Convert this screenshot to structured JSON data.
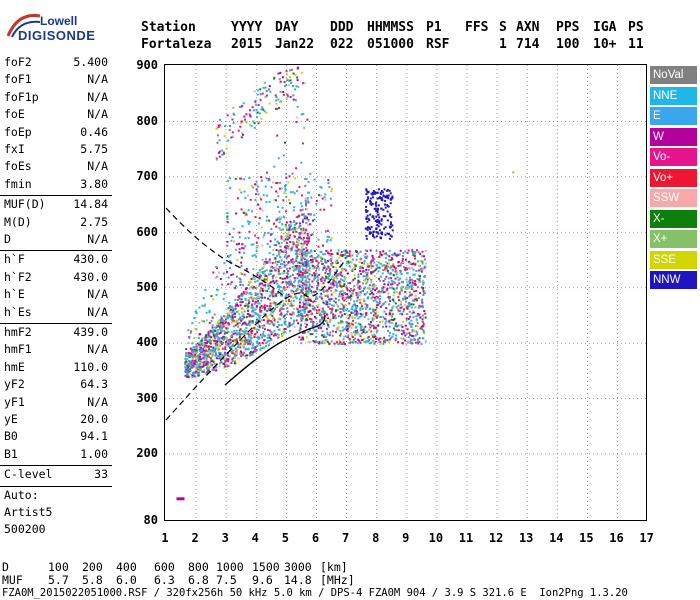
{
  "logo": {
    "line1": "Lowell",
    "line2": "DIGISONDE"
  },
  "header": {
    "row1": [
      "Station",
      "YYYY",
      "DAY",
      "DDD",
      "HHMMSS",
      "P1",
      "FFS",
      "S",
      "AXN",
      "PPS",
      "IGA",
      "PS"
    ],
    "row2": [
      "Fortaleza",
      "2015",
      "Jan22",
      "022",
      "051000",
      "RSF",
      "",
      "1",
      "714",
      "100",
      "10+",
      "11"
    ]
  },
  "params": [
    {
      "k": "foF2",
      "v": "5.400"
    },
    {
      "k": "foF1",
      "v": "N/A"
    },
    {
      "k": "foF1p",
      "v": "N/A"
    },
    {
      "k": "foE",
      "v": "N/A"
    },
    {
      "k": "foEp",
      "v": "0.46"
    },
    {
      "k": "fxI",
      "v": "5.75"
    },
    {
      "k": "foEs",
      "v": "N/A"
    },
    {
      "k": "fmin",
      "v": "3.80"
    },
    {
      "k": "MUF(D)",
      "v": "14.84",
      "sep": true
    },
    {
      "k": "M(D)",
      "v": "2.75"
    },
    {
      "k": "D",
      "v": "N/A"
    },
    {
      "k": "h`F",
      "v": "430.0",
      "sep": true
    },
    {
      "k": "h`F2",
      "v": "430.0"
    },
    {
      "k": "h`E",
      "v": "N/A"
    },
    {
      "k": "h`Es",
      "v": "N/A"
    },
    {
      "k": "hmF2",
      "v": "439.0",
      "sep": true
    },
    {
      "k": "hmF1",
      "v": "N/A"
    },
    {
      "k": "hmE",
      "v": "110.0"
    },
    {
      "k": "yF2",
      "v": "64.3"
    },
    {
      "k": "yF1",
      "v": "N/A"
    },
    {
      "k": "yE",
      "v": "20.0"
    },
    {
      "k": "B0",
      "v": "94.1"
    },
    {
      "k": "B1",
      "v": "1.00"
    },
    {
      "k": "C-level",
      "v": "33",
      "sep": true
    },
    {
      "k": "Auto:",
      "v": "",
      "sep": true
    },
    {
      "k": "Artist5",
      "v": ""
    },
    {
      "k": "500200",
      "v": ""
    }
  ],
  "plot": {
    "y_ticks": [
      "900",
      "800",
      "700",
      "600",
      "500",
      "400",
      "300",
      "200",
      "80"
    ],
    "x_ticks": [
      "1",
      "2",
      "3",
      "4",
      "5",
      "6",
      "7",
      "8",
      "9",
      "10",
      "11",
      "12",
      "13",
      "14",
      "15",
      "16",
      "17"
    ]
  },
  "legend": [
    {
      "label": "NoVal",
      "color": "#808080"
    },
    {
      "label": "NNE",
      "color": "#1fb8e6"
    },
    {
      "label": "E",
      "color": "#3aa6ee"
    },
    {
      "label": "W",
      "color": "#b4009c"
    },
    {
      "label": "Vo-",
      "color": "#e6158c"
    },
    {
      "label": "Vo+",
      "color": "#ee1633"
    },
    {
      "label": "SSW",
      "color": "#f7a9a9"
    },
    {
      "label": "X-",
      "color": "#0d7f0d"
    },
    {
      "label": "X+",
      "color": "#86c067"
    },
    {
      "label": "SSE",
      "color": "#cfd600"
    },
    {
      "label": "NNW",
      "color": "#1f14c2"
    }
  ],
  "bottom": {
    "row1_head": "D",
    "row1": [
      "100",
      "200",
      "400",
      "600",
      "800",
      "1000",
      "1500",
      "3000",
      "[km]"
    ],
    "row2_head": "MUF",
    "row2": [
      "5.7",
      "5.8",
      "6.0",
      "6.3",
      "6.8",
      "7.5",
      "9.6",
      "14.8",
      "[MHz]"
    ],
    "footer": "FZA0M_2015022051000.RSF / 320fx256h 50 kHz 5.0 km / DPS-4 FZA0M 904 / 3.9 S 321.6 E  Ion2Png 1.3.20"
  }
}
